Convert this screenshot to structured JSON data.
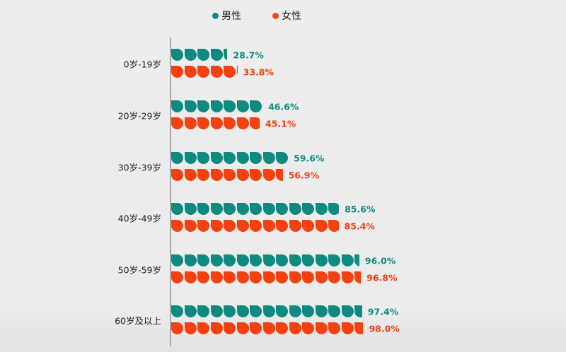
{
  "legend": [
    {
      "label": "男性",
      "color": "#0f8a80"
    },
    {
      "label": "女性",
      "color": "#f5400f"
    }
  ],
  "colors": {
    "male": "#0f8a80",
    "female": "#f5400f",
    "axis": "#a8a8a8"
  },
  "chart_data": {
    "type": "bar",
    "orientation": "horizontal",
    "style": "pictograph (teardrop icons)",
    "title": "",
    "xlabel": "",
    "ylabel": "",
    "xlim": [
      0,
      100
    ],
    "grid": false,
    "legend_position": "top",
    "categories": [
      "0岁-19岁",
      "20岁-29岁",
      "30岁-39岁",
      "40岁-49岁",
      "50岁-59岁",
      "60岁及以上"
    ],
    "series": [
      {
        "name": "男性",
        "color": "#0f8a80",
        "values": [
          28.7,
          46.6,
          59.6,
          85.6,
          96.0,
          97.4
        ],
        "labels": [
          "28.7%",
          "46.6%",
          "59.6%",
          "85.6%",
          "96.0%",
          "97.4%"
        ]
      },
      {
        "name": "女性",
        "color": "#f5400f",
        "values": [
          33.8,
          45.1,
          56.9,
          85.4,
          96.8,
          98.0
        ],
        "labels": [
          "33.8%",
          "45.1%",
          "56.9%",
          "85.4%",
          "96.8%",
          "98.0%"
        ]
      }
    ]
  }
}
